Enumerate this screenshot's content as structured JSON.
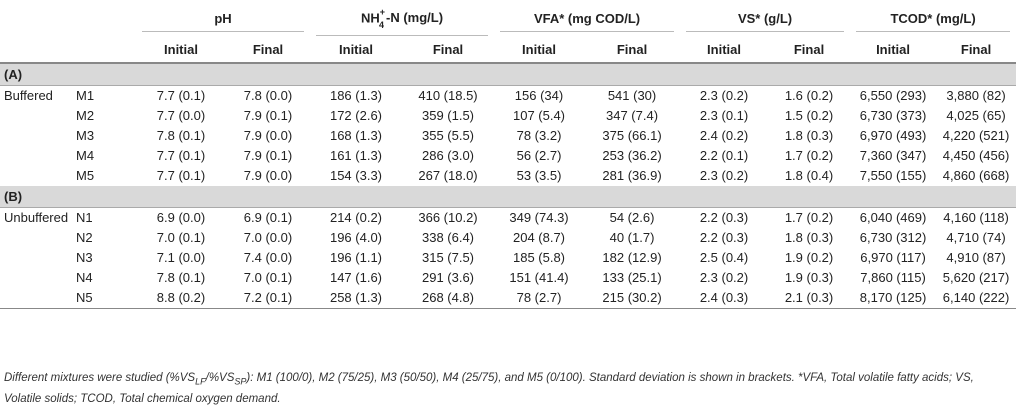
{
  "header": {
    "groups": [
      "pH",
      "NH",
      "4",
      "+",
      "-N (mg/L)",
      "VFA* (mg COD/L)",
      "VS* (g/L)",
      "TCOD* (mg/L)"
    ],
    "ph": "pH",
    "nh4_base": "NH",
    "nh4_sub": "4",
    "nh4_sup": "+",
    "nh4_rest": "-N (mg/L)",
    "vfa": "VFA* (mg COD/L)",
    "vs": "VS* (g/L)",
    "tcod": "TCOD* (mg/L)",
    "initial": "Initial",
    "final": "Final"
  },
  "sections": {
    "a_label": "(A)",
    "a_group": "Buffered",
    "b_label": "(B)",
    "b_group": "Unbuffered"
  },
  "rows_a": [
    {
      "id": "M1",
      "v": [
        "7.7 (0.1)",
        "7.8 (0.0)",
        "186 (1.3)",
        "410 (18.5)",
        "156 (34)",
        "541 (30)",
        "2.3 (0.2)",
        "1.6 (0.2)",
        "6,550 (293)",
        "3,880 (82)"
      ]
    },
    {
      "id": "M2",
      "v": [
        "7.7 (0.0)",
        "7.9 (0.1)",
        "172 (2.6)",
        "359 (1.5)",
        "107 (5.4)",
        "347 (7.4)",
        "2.3 (0.1)",
        "1.5 (0.2)",
        "6,730 (373)",
        "4,025 (65)"
      ]
    },
    {
      "id": "M3",
      "v": [
        "7.8 (0.1)",
        "7.9 (0.0)",
        "168 (1.3)",
        "355 (5.5)",
        "78 (3.2)",
        "375 (66.1)",
        "2.4 (0.2)",
        "1.8 (0.3)",
        "6,970 (493)",
        "4,220 (521)"
      ]
    },
    {
      "id": "M4",
      "v": [
        "7.7 (0.1)",
        "7.9 (0.1)",
        "161 (1.3)",
        "286 (3.0)",
        "56 (2.7)",
        "253 (36.2)",
        "2.2 (0.1)",
        "1.7 (0.2)",
        "7,360 (347)",
        "4,450 (456)"
      ]
    },
    {
      "id": "M5",
      "v": [
        "7.7 (0.1)",
        "7.9 (0.0)",
        "154 (3.3)",
        "267 (18.0)",
        "53 (3.5)",
        "281 (36.9)",
        "2.3 (0.2)",
        "1.8 (0.4)",
        "7,550 (155)",
        "4,860 (668)"
      ]
    }
  ],
  "rows_b": [
    {
      "id": "N1",
      "v": [
        "6.9 (0.0)",
        "6.9 (0.1)",
        "214 (0.2)",
        "366 (10.2)",
        "349 (74.3)",
        "54 (2.6)",
        "2.2 (0.3)",
        "1.7 (0.2)",
        "6,040 (469)",
        "4,160 (118)"
      ]
    },
    {
      "id": "N2",
      "v": [
        "7.0 (0.1)",
        "7.0 (0.0)",
        "196 (4.0)",
        "338 (6.4)",
        "204 (8.7)",
        "40 (1.7)",
        "2.2 (0.3)",
        "1.8 (0.3)",
        "6,730 (312)",
        "4,710 (74)"
      ]
    },
    {
      "id": "N3",
      "v": [
        "7.1 (0.0)",
        "7.4 (0.0)",
        "196 (1.1)",
        "315 (7.5)",
        "185 (5.8)",
        "182 (12.9)",
        "2.5 (0.4)",
        "1.9 (0.2)",
        "6,970 (117)",
        "4,910 (87)"
      ]
    },
    {
      "id": "N4",
      "v": [
        "7.8 (0.1)",
        "7.0 (0.1)",
        "147 (1.6)",
        "291 (3.6)",
        "151 (41.4)",
        "133 (25.1)",
        "2.3 (0.2)",
        "1.9 (0.3)",
        "7,860 (115)",
        "5,620 (217)"
      ]
    },
    {
      "id": "N5",
      "v": [
        "8.8 (0.2)",
        "7.2 (0.1)",
        "258 (1.3)",
        "268 (4.8)",
        "78 (2.7)",
        "215 (30.2)",
        "2.4 (0.3)",
        "2.1 (0.3)",
        "8,170 (125)",
        "6,140 (222)"
      ]
    }
  ],
  "footnote": {
    "part1": "Different mixtures were studied (%VS",
    "sub1": "LF",
    "part2": "/%VS",
    "sub2": "SP",
    "part3": "): M1 (100/0), M2 (75/25), M3 (50/50), M4 (25/75), and M5 (0/100). Standard deviation is shown in brackets. *VFA, Total volatile fatty acids; VS, Volatile solids; TCOD, Total chemical oxygen demand."
  }
}
